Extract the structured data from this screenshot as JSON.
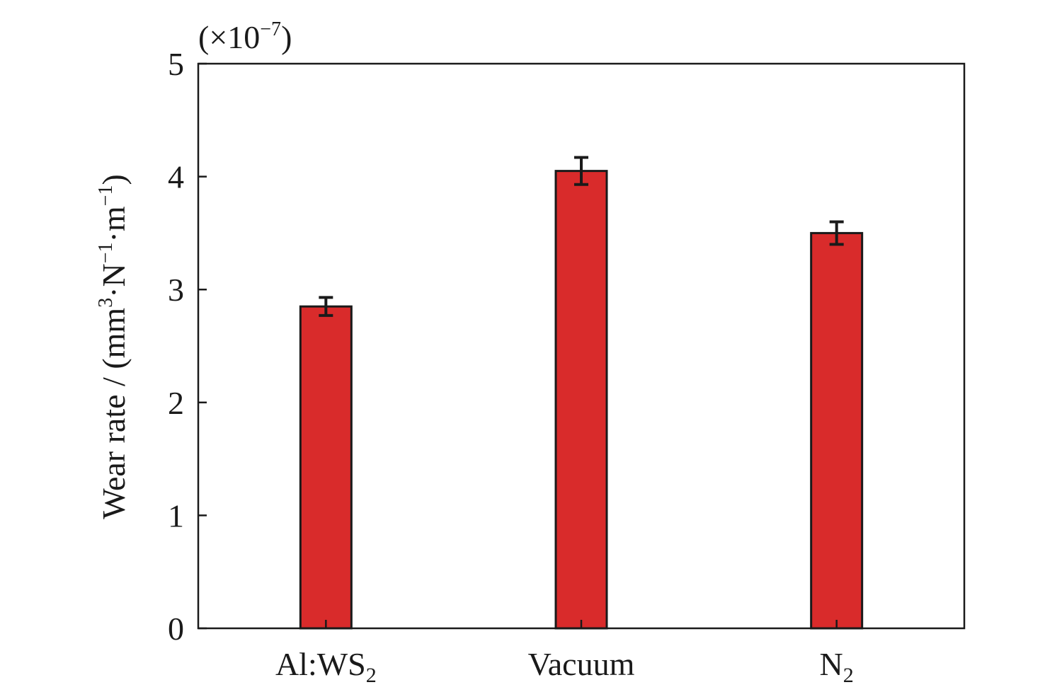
{
  "chart_data": {
    "type": "bar",
    "categories": [
      {
        "base": "Al:WS",
        "sub": "2"
      },
      {
        "base": "Vacuum",
        "sub": ""
      },
      {
        "base": "N",
        "sub": "2"
      }
    ],
    "values": [
      2.85,
      4.05,
      3.5
    ],
    "errors": [
      0.08,
      0.12,
      0.1
    ],
    "ylim": [
      0,
      5
    ],
    "yticks": [
      "0",
      "1",
      "2",
      "3",
      "4",
      "5"
    ],
    "ylabel": {
      "p1": "Wear rate / (mm",
      "s1": "3",
      "p2": "·N",
      "s2": "−1",
      "p3": "·m",
      "s3": "−1",
      "p4": ")"
    },
    "multiplier": {
      "p1": "(×10",
      "s1": "−7",
      "p2": ")"
    },
    "xlabel": "",
    "bar_color": "#d92b2b",
    "grid": false
  }
}
